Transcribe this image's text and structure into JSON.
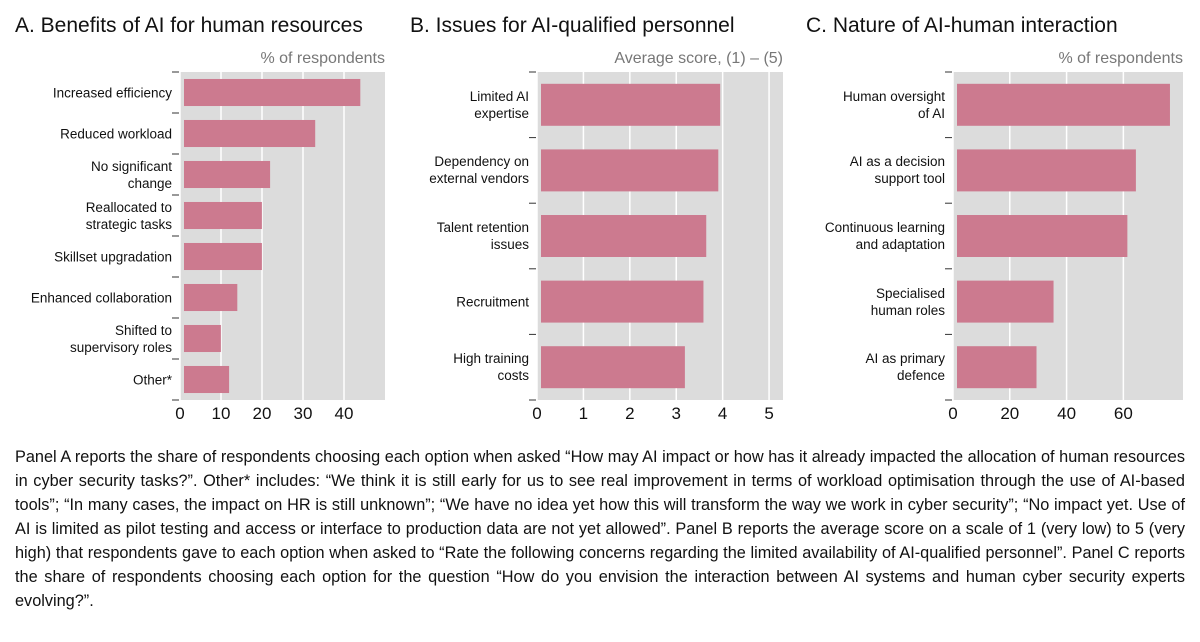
{
  "chart_data": [
    {
      "type": "hbar",
      "title": "A. Benefits of AI for human resources",
      "subtitle": "% of respondents",
      "categories": [
        "Increased efficiency",
        "Reduced workload",
        "No significant\nchange",
        "Reallocated to\nstrategic tasks",
        "Skillset upgradation",
        "Enhanced collaboration",
        "Shifted to\nsupervisory roles",
        "Other*"
      ],
      "values": [
        43,
        32,
        21,
        19,
        19,
        13,
        9,
        11
      ],
      "color": "#cc7a8f",
      "xlim": [
        0,
        50
      ],
      "xticks": [
        0,
        10,
        20,
        30,
        40
      ],
      "grid": true
    },
    {
      "type": "hbar",
      "title": "B. Issues for AI-qualified personnel",
      "subtitle": "Average score, (1) – (5)",
      "categories": [
        "Limited AI\nexpertise",
        "Dependency on\nexternal vendors",
        "Talent retention\nissues",
        "Recruitment",
        "High training\ncosts"
      ],
      "values": [
        3.86,
        3.82,
        3.56,
        3.5,
        3.1
      ],
      "color": "#cc7a8f",
      "xlim": [
        0,
        5.3
      ],
      "xticks": [
        0,
        1,
        2,
        3,
        4,
        5
      ],
      "grid": true
    },
    {
      "type": "hbar",
      "title": "C. Nature of AI-human interaction",
      "subtitle": "% of respondents",
      "categories": [
        "Human oversight\nof AI",
        "AI as a decision\nsupport tool",
        "Continuous learning\nand adaptation",
        "Specialised\nhuman roles",
        "AI as primary\ndefence"
      ],
      "values": [
        75,
        63,
        60,
        34,
        28
      ],
      "color": "#cc7a8f",
      "xlim": [
        0,
        81
      ],
      "xticks": [
        0,
        20,
        40,
        60
      ],
      "grid": true
    }
  ],
  "note": "Panel A reports the share of respondents choosing each option when asked “How may AI impact or how has it already impacted the allocation of human resources in cyber security tasks?”. Other* includes: “We think it is still early for us to see real improvement in terms of workload optimisation through the use of AI-based tools”; “In many cases, the impact on HR is still unknown”; “We have no idea yet how this will transform the way we work in cyber security”; “No impact yet. Use of AI is limited as pilot testing and access or interface to production data are not yet allowed”. Panel B reports the average score on a scale of 1 (very low) to 5 (very high) that respondents gave to each option when asked to “Rate the following concerns regarding the limited availability of AI-qualified personnel”. Panel C reports the share of respondents choosing each option for the question “How do you envision the interaction between AI systems and human cyber security experts evolving?”."
}
